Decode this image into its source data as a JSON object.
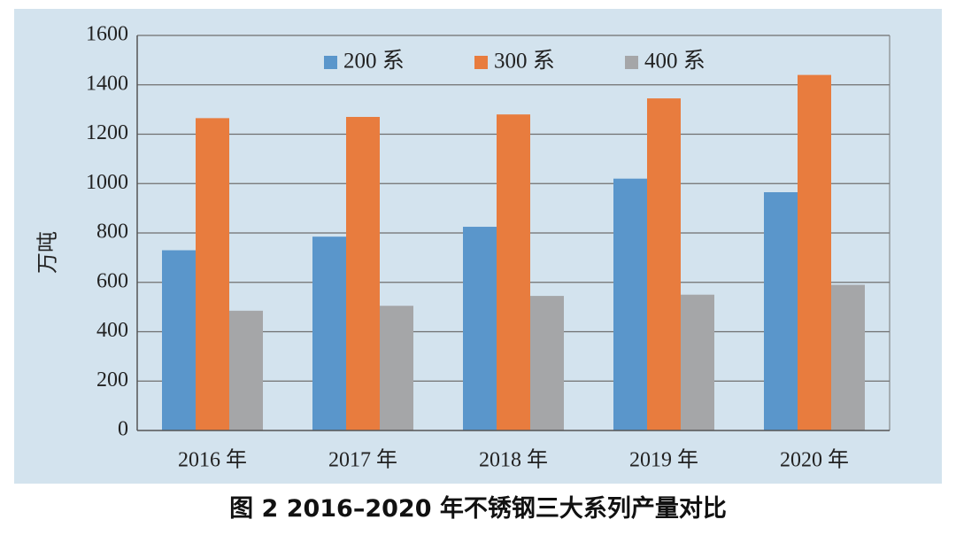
{
  "caption": "图 2  2016–2020 年不锈钢三大系列产量对比",
  "chart_data": {
    "type": "bar",
    "title": "",
    "xlabel": "",
    "ylabel": "万吨",
    "ylim": [
      0,
      1600
    ],
    "yticks": [
      0,
      200,
      400,
      600,
      800,
      1000,
      1200,
      1400,
      1600
    ],
    "grid": true,
    "legend_position": "top-center",
    "categories": [
      "2016 年",
      "2017 年",
      "2018 年",
      "2019 年",
      "2020 年"
    ],
    "series": [
      {
        "name": "200 系",
        "color": "#5a96cb",
        "values": [
          730,
          785,
          825,
          1020,
          965
        ]
      },
      {
        "name": "300 系",
        "color": "#e87c3e",
        "values": [
          1265,
          1270,
          1280,
          1345,
          1440
        ]
      },
      {
        "name": "400 系",
        "color": "#a5a6a8",
        "values": [
          485,
          505,
          545,
          550,
          590
        ]
      }
    ]
  }
}
